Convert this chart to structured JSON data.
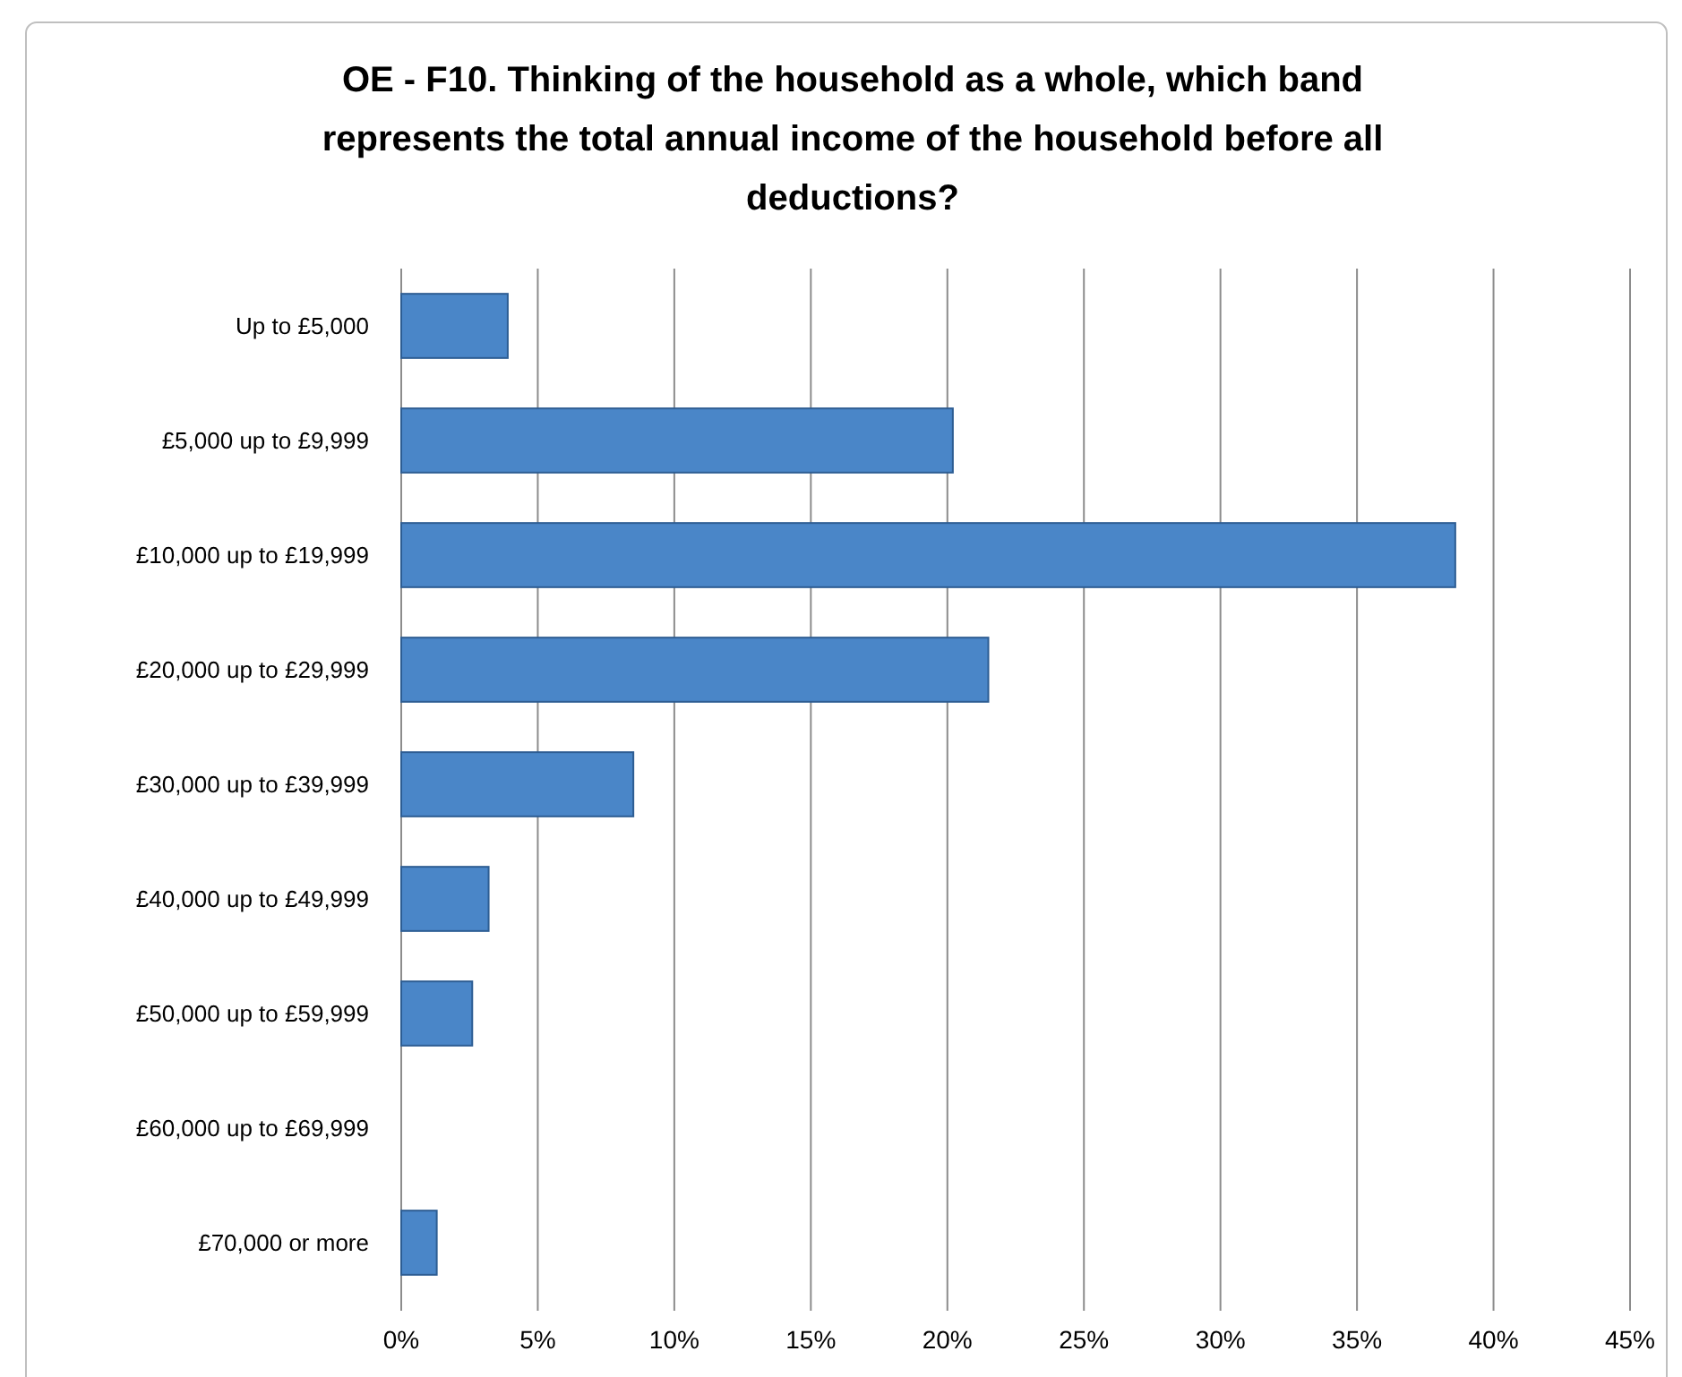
{
  "chart_data": {
    "type": "bar",
    "orientation": "horizontal",
    "title": "OE - F10. Thinking of the household as a whole, which band represents the total annual income of the household before all deductions?",
    "categories": [
      "Up to £5,000",
      "£5,000 up to £9,999",
      "£10,000 up to £19,999",
      "£20,000 up to £29,999",
      "£30,000 up to £39,999",
      "£40,000 up to £49,999",
      "£50,000 up to £59,999",
      "£60,000 up to £69,999",
      "£70,000 or more"
    ],
    "values": [
      3.9,
      20.2,
      38.6,
      21.5,
      8.5,
      3.2,
      2.6,
      0,
      1.3
    ],
    "color": "#4a86c8",
    "xlim": [
      0,
      45
    ],
    "xticks": [
      {
        "value": 0,
        "label": "0%"
      },
      {
        "value": 5,
        "label": "5%"
      },
      {
        "value": 10,
        "label": "10%"
      },
      {
        "value": 15,
        "label": "15%"
      },
      {
        "value": 20,
        "label": "20%"
      },
      {
        "value": 25,
        "label": "25%"
      },
      {
        "value": 30,
        "label": "30%"
      },
      {
        "value": 35,
        "label": "35%"
      },
      {
        "value": 40,
        "label": "40%"
      },
      {
        "value": 45,
        "label": "45%"
      }
    ],
    "grid": "x"
  }
}
